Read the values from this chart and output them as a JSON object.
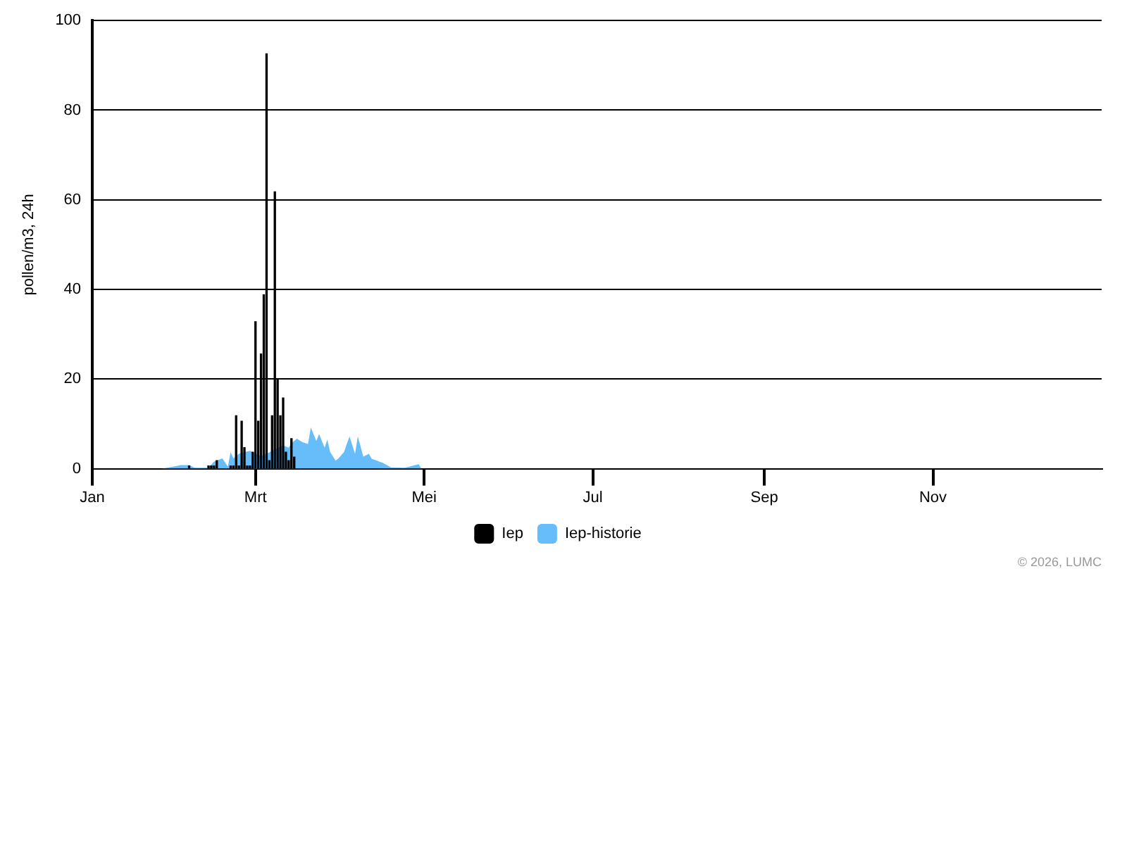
{
  "chart_data": {
    "type": "bar",
    "ylabel": "pollen/m3, 24h",
    "xlim": [
      "--01-01",
      "--12-31"
    ],
    "xticks": [
      {
        "value": "--01-01",
        "label": "Jan"
      },
      {
        "value": "--03-01",
        "label": "Mrt"
      },
      {
        "value": "--05-01",
        "label": "Mei"
      },
      {
        "value": "--07-01",
        "label": "Jul"
      },
      {
        "value": "--09-01",
        "label": "Sep"
      },
      {
        "value": "--11-01",
        "label": "Nov"
      }
    ],
    "ylim": [
      0,
      100
    ],
    "yticks": [
      0,
      20,
      40,
      60,
      80,
      100
    ],
    "grid": "y",
    "legend": "bottom",
    "annotations": [
      "© 2026, LUMC"
    ],
    "series": [
      {
        "name": "Iep-historie",
        "type": "area",
        "color": "#66bdfa",
        "x": [
          "--01-26",
          "--01-28",
          "--02-02",
          "--02-05",
          "--02-07",
          "--02-12",
          "--02-14",
          "--02-17",
          "--02-19",
          "--02-20",
          "--02-21",
          "--02-23",
          "--02-25",
          "--02-27",
          "--03-01",
          "--03-03",
          "--03-05",
          "--03-08",
          "--03-11",
          "--03-13",
          "--03-14",
          "--03-16",
          "--03-18",
          "--03-20",
          "--03-21",
          "--03-23",
          "--03-24",
          "--03-26",
          "--03-27",
          "--03-28",
          "--03-30",
          "--03-31",
          "--04-02",
          "--04-04",
          "--04-06",
          "--04-07",
          "--04-09",
          "--04-11",
          "--04-12",
          "--04-16",
          "--04-19",
          "--04-24",
          "--04-29",
          "--04-30"
        ],
        "values": [
          0,
          0.2,
          0.8,
          0.8,
          0.2,
          0.2,
          1.6,
          2.3,
          0.5,
          3.7,
          2.3,
          3.3,
          3.7,
          4,
          3.3,
          2.8,
          3.3,
          4.3,
          5.2,
          4.7,
          5.7,
          6.7,
          5.9,
          5.5,
          9.2,
          6.2,
          7.7,
          4.7,
          6.5,
          3.7,
          1.8,
          2.3,
          3.7,
          7.2,
          3.3,
          7.2,
          2.7,
          3.3,
          2.2,
          1.3,
          0.3,
          0.2,
          1,
          0
        ]
      },
      {
        "name": "Iep",
        "color": "#000000",
        "x": [
          "--02-05",
          "--02-12",
          "--02-13",
          "--02-14",
          "--02-15",
          "--02-20",
          "--02-21",
          "--02-22",
          "--02-23",
          "--02-24",
          "--02-25",
          "--02-26",
          "--02-27",
          "--02-28",
          "--03-01",
          "--03-02",
          "--03-03",
          "--03-04",
          "--03-05",
          "--03-06",
          "--03-07",
          "--03-08",
          "--03-09",
          "--03-10",
          "--03-11",
          "--03-12",
          "--03-13",
          "--03-14",
          "--03-15"
        ],
        "values": [
          0.6,
          0.6,
          0.6,
          0.6,
          1.8,
          0.6,
          0.6,
          11.8,
          0.6,
          10.6,
          4.7,
          0.6,
          0.6,
          3.7,
          32.8,
          10.6,
          25.6,
          38.8,
          92.6,
          1.8,
          11.8,
          61.8,
          20,
          11.8,
          15.8,
          3.7,
          1.8,
          6.7,
          2.6
        ]
      }
    ]
  }
}
